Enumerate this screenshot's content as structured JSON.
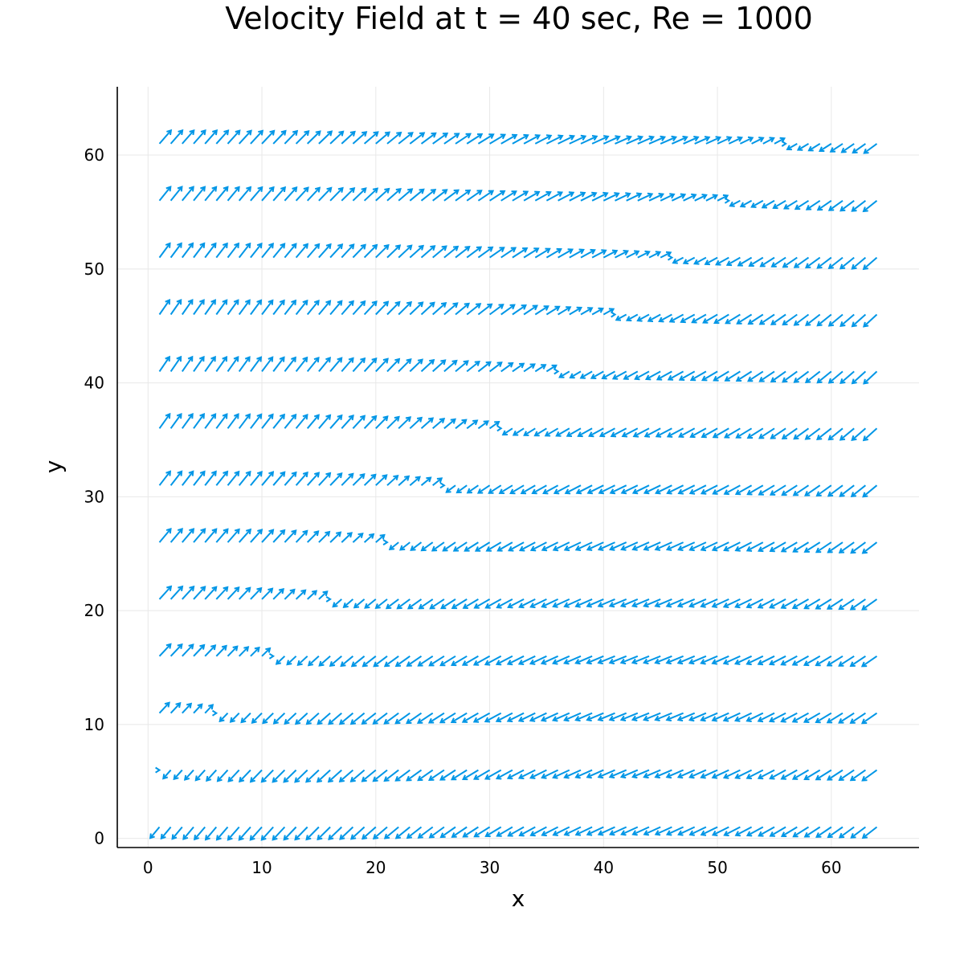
{
  "chart_data": {
    "type": "quiver",
    "title": "Velocity Field at t = 40 sec, Re = 1000",
    "xlabel": "x",
    "ylabel": "y",
    "xlim": [
      -2.7,
      67.7
    ],
    "ylim": [
      -0.8,
      66
    ],
    "xticks": [
      0,
      10,
      20,
      30,
      40,
      50,
      60
    ],
    "yticks": [
      0,
      10,
      20,
      30,
      40,
      50,
      60
    ],
    "grid": true,
    "legend": "none",
    "color": "#0096e6",
    "field": {
      "x_start": 1,
      "x_step": 1,
      "x_count": 64,
      "y_start": 1,
      "y_step": 5,
      "y_count": 13,
      "mode": "diagonal bands: arrows point up-right in upper-left region, down-left in lower-right region, with a saddle near (31, 36)"
    }
  }
}
